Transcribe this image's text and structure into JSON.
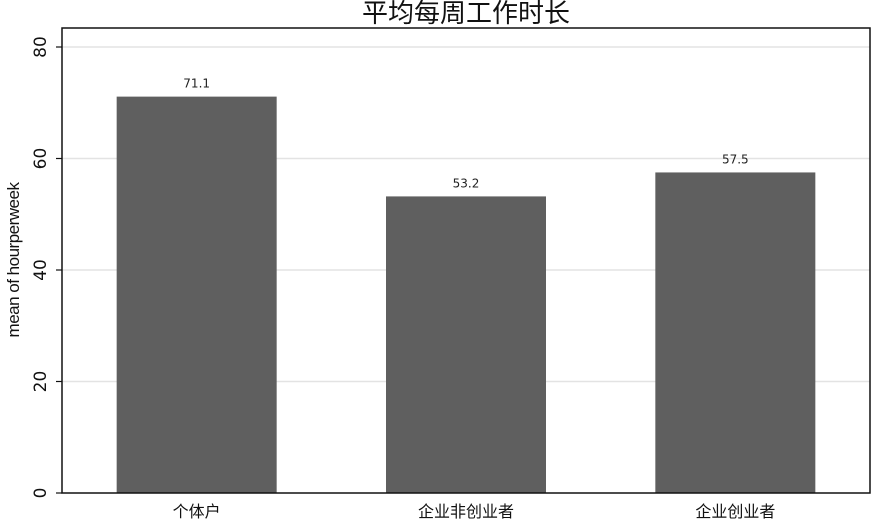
{
  "chart_data": {
    "type": "bar",
    "title": "平均每周工作时长",
    "xlabel": "",
    "ylabel": "mean of hourperweek",
    "categories": [
      "个体户",
      "企业非创业者",
      "企业创业者"
    ],
    "values": [
      71.1,
      53.2,
      57.5
    ],
    "data_labels": [
      "71.1",
      "53.2",
      "57.5"
    ],
    "ylim": [
      0,
      83.4
    ],
    "yticks": [
      0,
      20,
      40,
      60,
      80
    ],
    "grid": true,
    "bar_color": "#5f5f5f",
    "grid_color": "#e3e3e3"
  }
}
